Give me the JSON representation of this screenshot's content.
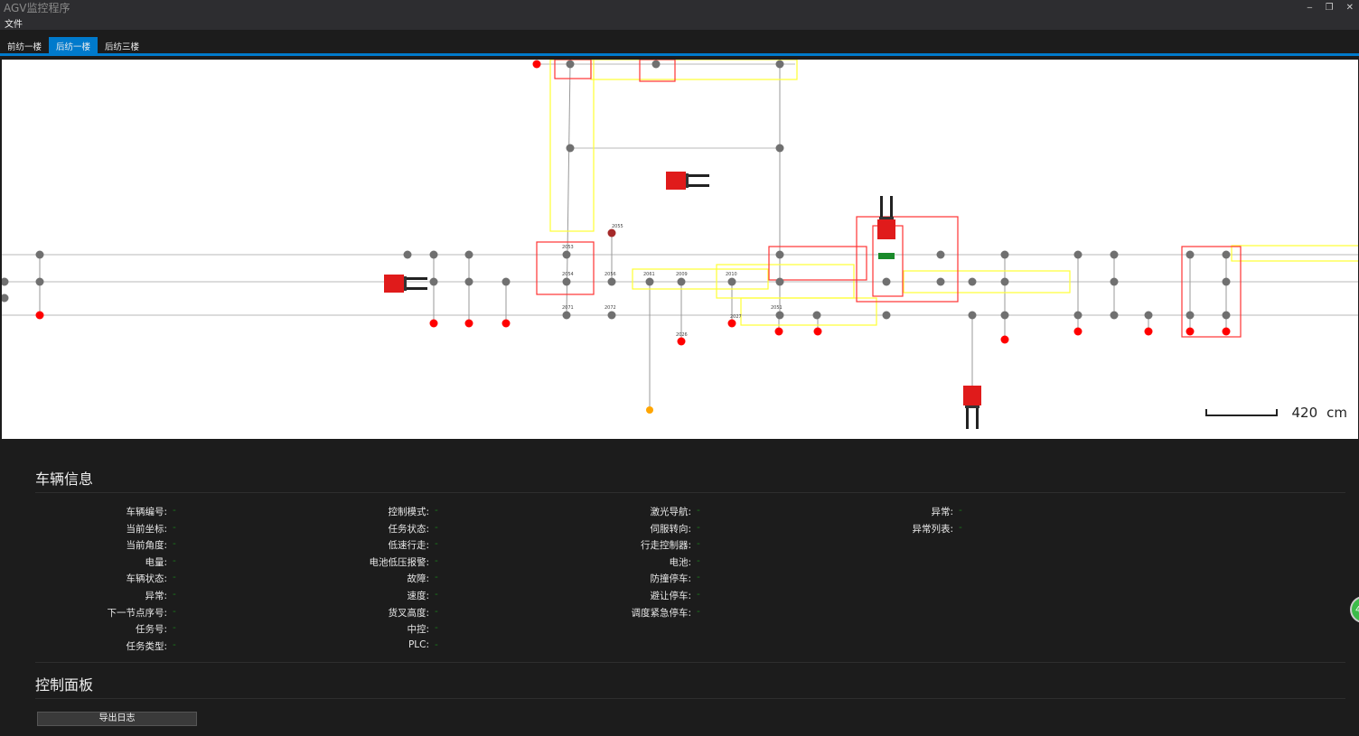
{
  "window": {
    "title": "AGV监控程序",
    "minimize": "‒",
    "restore": "❐",
    "close": "✕"
  },
  "menu": {
    "file": "文件"
  },
  "tabs": [
    {
      "label": "前纺一楼",
      "active": false
    },
    {
      "label": "后纺一楼",
      "active": true
    },
    {
      "label": "后纺三楼",
      "active": false
    }
  ],
  "map": {
    "scale_value": "420",
    "scale_unit": "cm",
    "colors": {
      "node": "#707070",
      "node_alarm": "#ff0000",
      "node_dark": "#a52a2a",
      "node_warn": "#ffa500",
      "zone_red": "#ff3333",
      "zone_yellow": "#ffff33",
      "path": "#d0d0d0",
      "agv": "#e01b1b"
    },
    "node_labels": [
      "2053",
      "2054",
      "2055",
      "2056",
      "2061",
      "2009",
      "2010",
      "2071",
      "2072",
      "2027",
      "2051",
      "2026"
    ]
  },
  "vehicle_info": {
    "title": "车辆信息",
    "columns": [
      [
        {
          "label": "车辆编号:",
          "value": "-"
        },
        {
          "label": "当前坐标:",
          "value": "-"
        },
        {
          "label": "当前角度:",
          "value": "-"
        },
        {
          "label": "电量:",
          "value": "-"
        },
        {
          "label": "车辆状态:",
          "value": "-"
        },
        {
          "label": "异常:",
          "value": "-"
        },
        {
          "label": "下一节点序号:",
          "value": "-"
        },
        {
          "label": "任务号:",
          "value": "-"
        },
        {
          "label": "任务类型:",
          "value": "-"
        }
      ],
      [
        {
          "label": "控制模式:",
          "value": "-"
        },
        {
          "label": "任务状态:",
          "value": "-"
        },
        {
          "label": "低速行走:",
          "value": "-"
        },
        {
          "label": "电池低压报警:",
          "value": "-"
        },
        {
          "label": "故障:",
          "value": "-"
        },
        {
          "label": "速度:",
          "value": "-"
        },
        {
          "label": "货叉高度:",
          "value": "-"
        },
        {
          "label": "中控:",
          "value": "-"
        },
        {
          "label": "PLC:",
          "value": "-"
        }
      ],
      [
        {
          "label": "激光导航:",
          "value": "-"
        },
        {
          "label": "伺服转向:",
          "value": "-"
        },
        {
          "label": "行走控制器:",
          "value": "-"
        },
        {
          "label": "电池:",
          "value": "-"
        },
        {
          "label": "防撞停车:",
          "value": "-"
        },
        {
          "label": "避让停车:",
          "value": "-"
        },
        {
          "label": "调度紧急停车:",
          "value": "-"
        }
      ],
      [
        {
          "label": "异常:",
          "value": "-"
        },
        {
          "label": "异常列表:",
          "value": "-"
        }
      ]
    ]
  },
  "control_panel": {
    "title": "控制面板",
    "export_log": "导出日志"
  },
  "floating_badge": "4"
}
